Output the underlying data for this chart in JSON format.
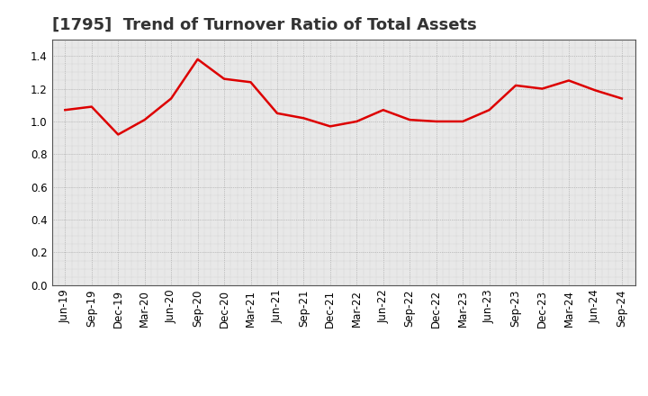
{
  "title": "[1795]  Trend of Turnover Ratio of Total Assets",
  "x_labels": [
    "Jun-19",
    "Sep-19",
    "Dec-19",
    "Mar-20",
    "Jun-20",
    "Sep-20",
    "Dec-20",
    "Mar-21",
    "Jun-21",
    "Sep-21",
    "Dec-21",
    "Mar-22",
    "Jun-22",
    "Sep-22",
    "Dec-22",
    "Mar-23",
    "Jun-23",
    "Sep-23",
    "Dec-23",
    "Mar-24",
    "Jun-24",
    "Sep-24"
  ],
  "values": [
    1.07,
    1.09,
    0.92,
    1.01,
    1.14,
    1.38,
    1.26,
    1.24,
    1.05,
    1.02,
    0.97,
    1.0,
    1.07,
    1.01,
    1.0,
    1.0,
    1.07,
    1.22,
    1.2,
    1.25,
    1.19,
    1.14
  ],
  "line_color": "#dd0000",
  "background_color": "#ffffff",
  "plot_bg_color": "#e8e8e8",
  "grid_color": "#999999",
  "ylim": [
    0.0,
    1.5
  ],
  "yticks": [
    0.0,
    0.2,
    0.4,
    0.6,
    0.8,
    1.0,
    1.2,
    1.4
  ],
  "title_fontsize": 13,
  "tick_fontsize": 8.5
}
